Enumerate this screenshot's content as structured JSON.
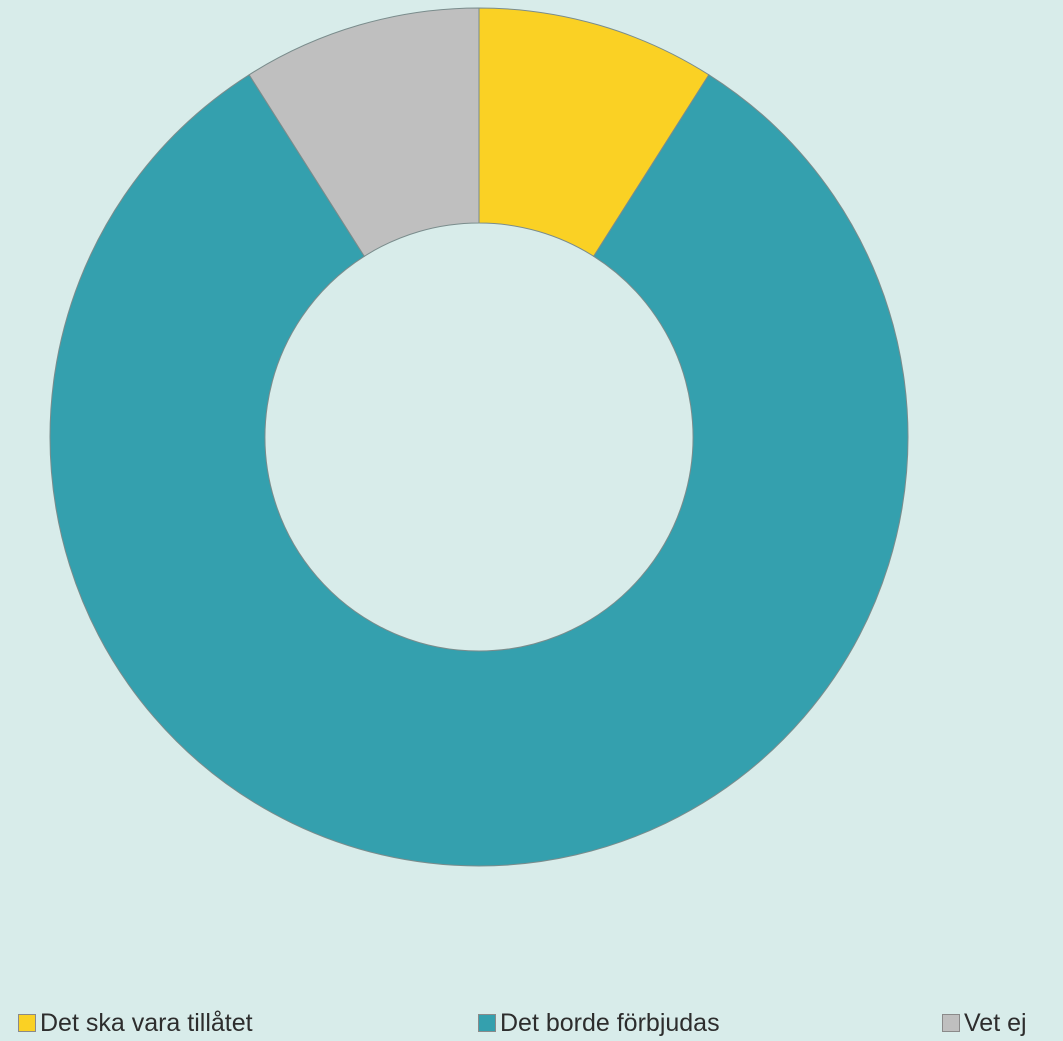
{
  "chart_data": {
    "type": "pie",
    "donut": true,
    "title": "",
    "legend_position": "bottom",
    "categories": [
      "Det ska vara tillåtet",
      "Det borde förbjudas",
      "Vet ej"
    ],
    "values": [
      9,
      82,
      9
    ],
    "colors": [
      "#fad124",
      "#34a0ae",
      "#bfbfbf"
    ],
    "start_angle_deg": 0,
    "direction": "clockwise"
  },
  "background_color": "#d8ecea"
}
